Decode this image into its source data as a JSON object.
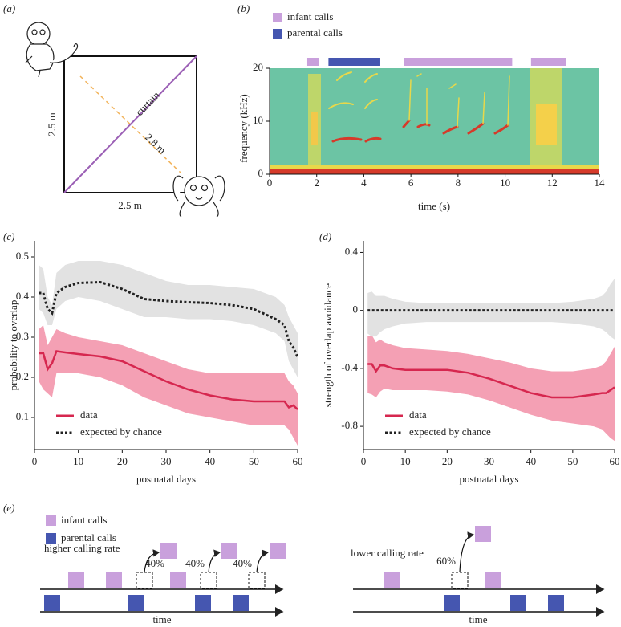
{
  "panel_a": {
    "label": "(a)",
    "curtain": "curtain",
    "diagonal": "2.8 m",
    "side_left": "2.5 m",
    "side_bottom": "2.5 m"
  },
  "panel_b": {
    "label": "(b)",
    "xlabel": "time (s)",
    "ylabel": "frequency (kHz)",
    "legend": [
      {
        "label": "infant calls",
        "color": "#c9a0dc"
      },
      {
        "label": "parental calls",
        "color": "#4556b0"
      }
    ],
    "xlim": [
      0,
      14
    ],
    "xticks": [
      0,
      2,
      4,
      6,
      8,
      10,
      12,
      14
    ],
    "ylim": [
      0,
      20
    ],
    "yticks": [
      0,
      10,
      20
    ],
    "infant_calls": [
      [
        1.6,
        2.1
      ],
      [
        5.7,
        10.3
      ],
      [
        11.1,
        12.6
      ]
    ],
    "parental_calls": [
      [
        2.5,
        4.7
      ]
    ]
  },
  "chart_data": [
    {
      "type": "line",
      "panel_label": "(c)",
      "xlabel": "postnatal days",
      "ylabel": "probability to overlap",
      "x": [
        1,
        2,
        3,
        4,
        5,
        7,
        10,
        15,
        20,
        25,
        30,
        35,
        40,
        45,
        50,
        55,
        57,
        58,
        59,
        60
      ],
      "xlim": [
        0,
        60
      ],
      "xticks": [
        0,
        10,
        20,
        30,
        40,
        50,
        60
      ],
      "ylim": [
        0.02,
        0.54
      ],
      "yticks": [
        0.1,
        0.2,
        0.3,
        0.4,
        0.5
      ],
      "legend": "lower left",
      "series": [
        {
          "name": "data",
          "color": "#d6274f",
          "band_color": "#f4a0b4",
          "dash": false,
          "values": [
            0.26,
            0.26,
            0.22,
            0.235,
            0.265,
            0.262,
            0.258,
            0.252,
            0.24,
            0.215,
            0.19,
            0.17,
            0.155,
            0.145,
            0.14,
            0.14,
            0.14,
            0.125,
            0.13,
            0.12
          ],
          "upper": [
            0.32,
            0.33,
            0.28,
            0.3,
            0.32,
            0.31,
            0.3,
            0.29,
            0.28,
            0.26,
            0.24,
            0.22,
            0.21,
            0.21,
            0.21,
            0.21,
            0.21,
            0.19,
            0.18,
            0.16
          ],
          "lower": [
            0.19,
            0.17,
            0.16,
            0.15,
            0.21,
            0.21,
            0.21,
            0.2,
            0.18,
            0.15,
            0.13,
            0.11,
            0.1,
            0.09,
            0.08,
            0.08,
            0.08,
            0.07,
            0.05,
            0.03
          ]
        },
        {
          "name": "expected by chance",
          "color": "#222222",
          "band_color": "#e2e2e2",
          "dash": true,
          "values": [
            0.41,
            0.41,
            0.37,
            0.36,
            0.41,
            0.425,
            0.435,
            0.437,
            0.42,
            0.395,
            0.39,
            0.387,
            0.385,
            0.38,
            0.37,
            0.345,
            0.33,
            0.29,
            0.275,
            0.25
          ],
          "upper": [
            0.48,
            0.47,
            0.4,
            0.38,
            0.46,
            0.48,
            0.49,
            0.49,
            0.48,
            0.46,
            0.44,
            0.43,
            0.43,
            0.425,
            0.42,
            0.4,
            0.38,
            0.35,
            0.33,
            0.31
          ],
          "lower": [
            0.37,
            0.36,
            0.33,
            0.33,
            0.37,
            0.39,
            0.4,
            0.39,
            0.37,
            0.35,
            0.35,
            0.345,
            0.345,
            0.34,
            0.33,
            0.31,
            0.29,
            0.24,
            0.22,
            0.2
          ]
        }
      ]
    },
    {
      "type": "line",
      "panel_label": "(d)",
      "xlabel": "postnatal days",
      "ylabel": "strength of overlap avoidance",
      "x": [
        1,
        2,
        3,
        4,
        5,
        7,
        10,
        15,
        20,
        25,
        30,
        35,
        40,
        45,
        50,
        55,
        57,
        58,
        59,
        60
      ],
      "xlim": [
        0,
        60
      ],
      "xticks": [
        0,
        10,
        20,
        30,
        40,
        50,
        60
      ],
      "ylim": [
        -0.96,
        0.48
      ],
      "yticks": [
        -0.8,
        -0.4,
        0,
        0.4
      ],
      "legend": "lower left",
      "series": [
        {
          "name": "data",
          "color": "#d6274f",
          "band_color": "#f4a0b4",
          "dash": false,
          "values": [
            -0.37,
            -0.37,
            -0.42,
            -0.38,
            -0.38,
            -0.4,
            -0.41,
            -0.41,
            -0.41,
            -0.43,
            -0.47,
            -0.52,
            -0.57,
            -0.6,
            -0.6,
            -0.58,
            -0.57,
            -0.57,
            -0.55,
            -0.53
          ],
          "upper": [
            -0.18,
            -0.17,
            -0.22,
            -0.2,
            -0.22,
            -0.24,
            -0.26,
            -0.27,
            -0.28,
            -0.3,
            -0.33,
            -0.36,
            -0.4,
            -0.42,
            -0.42,
            -0.4,
            -0.38,
            -0.35,
            -0.3,
            -0.25
          ],
          "lower": [
            -0.57,
            -0.58,
            -0.6,
            -0.56,
            -0.54,
            -0.55,
            -0.55,
            -0.55,
            -0.56,
            -0.58,
            -0.62,
            -0.67,
            -0.72,
            -0.76,
            -0.78,
            -0.8,
            -0.82,
            -0.85,
            -0.88,
            -0.9
          ]
        },
        {
          "name": "expected by chance",
          "color": "#222222",
          "band_color": "#e2e2e2",
          "dash": true,
          "values": [
            0,
            0,
            0,
            0,
            0,
            0,
            0,
            0,
            0,
            0,
            0,
            0,
            0,
            0,
            0,
            0,
            0,
            0,
            0,
            0
          ],
          "upper": [
            0.12,
            0.13,
            0.1,
            0.1,
            0.1,
            0.08,
            0.06,
            0.05,
            0.05,
            0.05,
            0.05,
            0.05,
            0.05,
            0.05,
            0.06,
            0.08,
            0.1,
            0.13,
            0.18,
            0.22
          ],
          "lower": [
            -0.16,
            -0.18,
            -0.18,
            -0.15,
            -0.13,
            -0.11,
            -0.09,
            -0.08,
            -0.08,
            -0.08,
            -0.08,
            -0.08,
            -0.08,
            -0.08,
            -0.09,
            -0.11,
            -0.13,
            -0.15,
            -0.18,
            -0.2
          ]
        }
      ]
    }
  ],
  "panel_e": {
    "label": "(e)",
    "legend": [
      {
        "label": "infant calls",
        "color": "#c9a0dc"
      },
      {
        "label": "parental calls",
        "color": "#4556b0"
      }
    ],
    "left": {
      "title": "higher calling rate",
      "percents": [
        "40%",
        "40%",
        "40%"
      ],
      "axis_label": "time"
    },
    "right": {
      "title": "lower calling rate",
      "percents": [
        "60%"
      ],
      "axis_label": "time"
    }
  }
}
